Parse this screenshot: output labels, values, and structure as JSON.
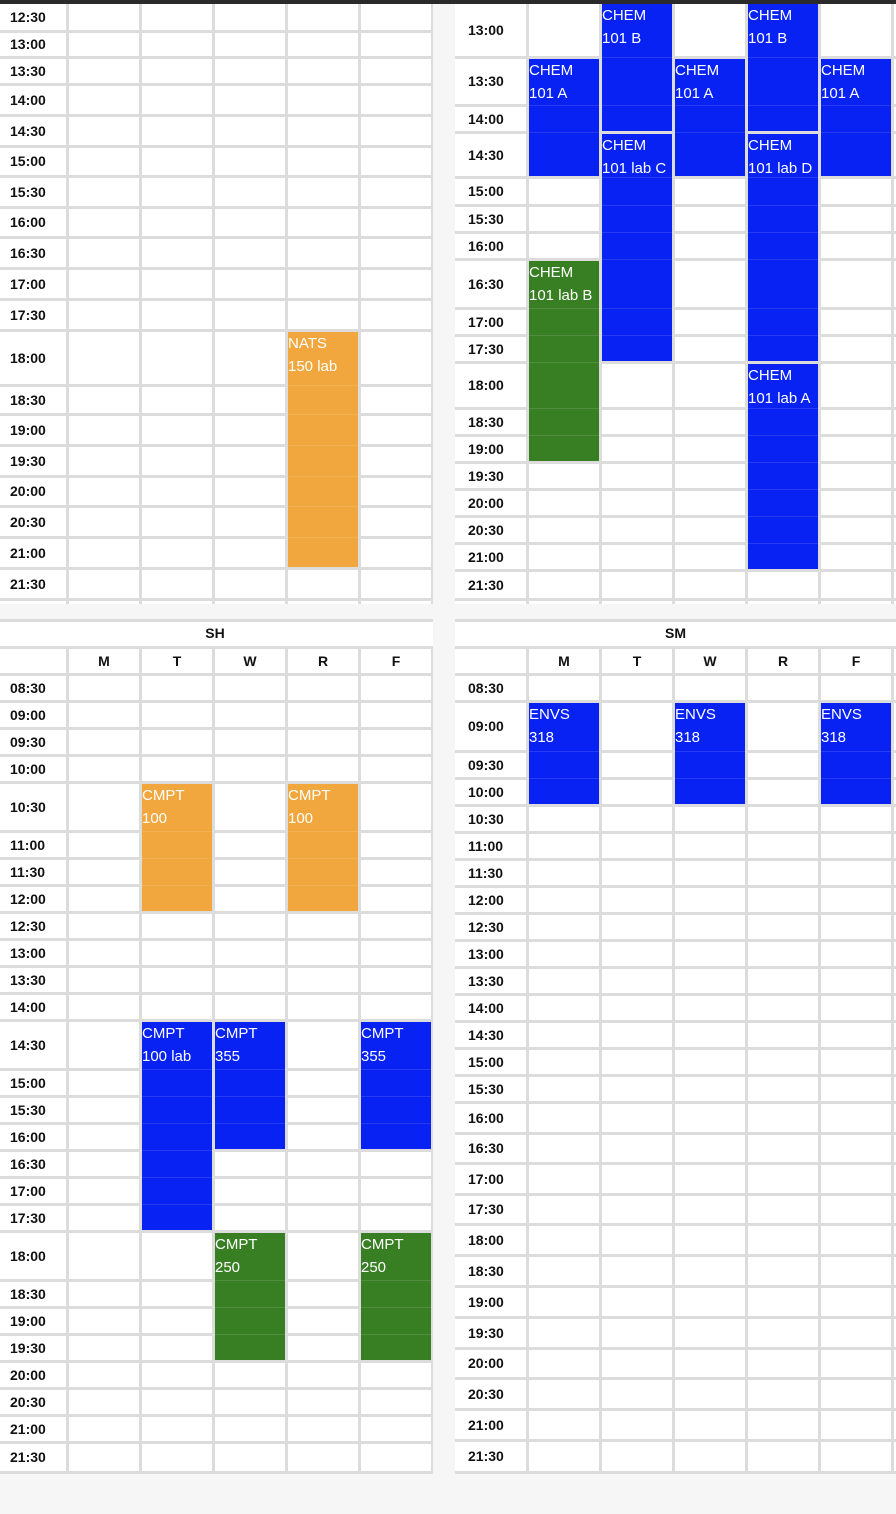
{
  "colors": {
    "blue": "#0722f3",
    "orange": "#f2a73e",
    "green": "#387f23",
    "grid": "#dcdcdc"
  },
  "panels": [
    {
      "id": "top-left",
      "title": "",
      "days": [],
      "times": [
        "12:30",
        "13:00",
        "13:30",
        "14:00",
        "14:30",
        "15:00",
        "15:30",
        "16:00",
        "16:30",
        "17:00",
        "17:30",
        "18:00",
        "18:30",
        "19:00",
        "19:30",
        "20:00",
        "20:30",
        "21:00",
        "21:30"
      ],
      "events": [
        {
          "line1": "NATS",
          "line2": "150 lab",
          "day": 3,
          "start": "18:00",
          "end": "21:30",
          "color": "orange"
        }
      ]
    },
    {
      "id": "top-right",
      "title": "",
      "days": [],
      "times": [
        "13:00",
        "13:30",
        "14:00",
        "14:30",
        "15:00",
        "15:30",
        "16:00",
        "16:30",
        "17:00",
        "17:30",
        "18:00",
        "18:30",
        "19:00",
        "19:30",
        "20:00",
        "20:30",
        "21:00",
        "21:30"
      ],
      "events": [
        {
          "line1": "CHEM",
          "line2": "101 B",
          "day": 1,
          "start": "13:00",
          "end": "14:30",
          "color": "blue"
        },
        {
          "line1": "CHEM",
          "line2": "101 B",
          "day": 3,
          "start": "13:00",
          "end": "14:30",
          "color": "blue"
        },
        {
          "line1": "CHEM",
          "line2": "101 A",
          "day": 0,
          "start": "13:30",
          "end": "15:00",
          "color": "blue"
        },
        {
          "line1": "CHEM",
          "line2": "101 A",
          "day": 2,
          "start": "13:30",
          "end": "15:00",
          "color": "blue"
        },
        {
          "line1": "CHEM",
          "line2": "101 A",
          "day": 4,
          "start": "13:30",
          "end": "15:00",
          "color": "blue"
        },
        {
          "line1": "CHEM",
          "line2": "101 lab C",
          "day": 1,
          "start": "14:30",
          "end": "18:00",
          "color": "blue"
        },
        {
          "line1": "CHEM",
          "line2": "101 lab D",
          "day": 3,
          "start": "14:30",
          "end": "18:00",
          "color": "blue"
        },
        {
          "line1": "CHEM",
          "line2": "101 lab B",
          "day": 0,
          "start": "16:30",
          "end": "19:30",
          "color": "green"
        },
        {
          "line1": "CHEM",
          "line2": "101 lab A",
          "day": 3,
          "start": "18:00",
          "end": "21:30",
          "color": "blue"
        }
      ]
    },
    {
      "id": "sh",
      "title": "SH",
      "days": [
        "M",
        "T",
        "W",
        "R",
        "F"
      ],
      "times": [
        "08:30",
        "09:00",
        "09:30",
        "10:00",
        "10:30",
        "11:00",
        "11:30",
        "12:00",
        "12:30",
        "13:00",
        "13:30",
        "14:00",
        "14:30",
        "15:00",
        "15:30",
        "16:00",
        "16:30",
        "17:00",
        "17:30",
        "18:00",
        "18:30",
        "19:00",
        "19:30",
        "20:00",
        "20:30",
        "21:00",
        "21:30"
      ],
      "events": [
        {
          "line1": "CMPT",
          "line2": "100",
          "day": 1,
          "start": "10:30",
          "end": "12:30",
          "color": "orange"
        },
        {
          "line1": "CMPT",
          "line2": "100",
          "day": 3,
          "start": "10:30",
          "end": "12:30",
          "color": "orange"
        },
        {
          "line1": "CMPT",
          "line2": "100 lab",
          "day": 1,
          "start": "14:30",
          "end": "18:00",
          "color": "blue"
        },
        {
          "line1": "CMPT",
          "line2": "355",
          "day": 2,
          "start": "14:30",
          "end": "16:30",
          "color": "blue"
        },
        {
          "line1": "CMPT",
          "line2": "355",
          "day": 4,
          "start": "14:30",
          "end": "16:30",
          "color": "blue"
        },
        {
          "line1": "CMPT",
          "line2": "250",
          "day": 2,
          "start": "18:00",
          "end": "20:00",
          "color": "green"
        },
        {
          "line1": "CMPT",
          "line2": "250",
          "day": 4,
          "start": "18:00",
          "end": "20:00",
          "color": "green"
        }
      ]
    },
    {
      "id": "sm",
      "title": "SM",
      "days": [
        "M",
        "T",
        "W",
        "R",
        "F"
      ],
      "times": [
        "08:30",
        "09:00",
        "09:30",
        "10:00",
        "10:30",
        "11:00",
        "11:30",
        "12:00",
        "12:30",
        "13:00",
        "13:30",
        "14:00",
        "14:30",
        "15:00",
        "15:30",
        "16:00",
        "16:30",
        "17:00",
        "17:30",
        "18:00",
        "18:30",
        "19:00",
        "19:30",
        "20:00",
        "20:30",
        "21:00",
        "21:30"
      ],
      "events": [
        {
          "line1": "ENVS",
          "line2": "318",
          "day": 0,
          "start": "09:00",
          "end": "10:30",
          "color": "blue"
        },
        {
          "line1": "ENVS",
          "line2": "318",
          "day": 2,
          "start": "09:00",
          "end": "10:30",
          "color": "blue"
        },
        {
          "line1": "ENVS",
          "line2": "318",
          "day": 4,
          "start": "09:00",
          "end": "10:30",
          "color": "blue"
        }
      ]
    }
  ]
}
